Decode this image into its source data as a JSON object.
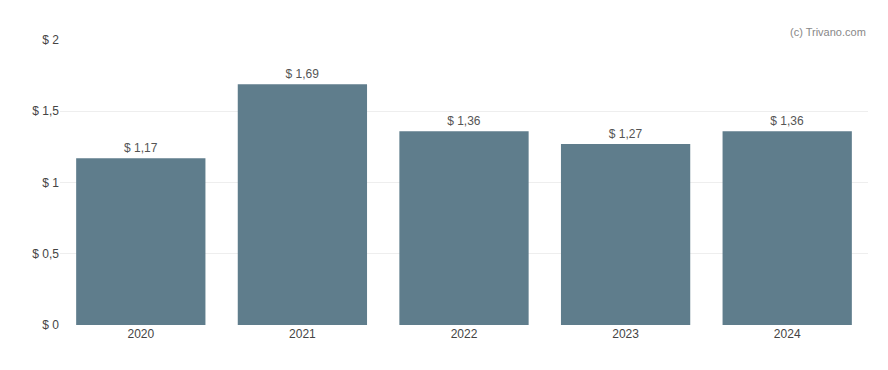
{
  "chart_data": {
    "type": "bar",
    "categories": [
      "2020",
      "2021",
      "2022",
      "2023",
      "2024"
    ],
    "values": [
      1.17,
      1.69,
      1.36,
      1.27,
      1.36
    ],
    "value_labels": [
      "$ 1,17",
      "$ 1,69",
      "$ 1,36",
      "$ 1,27",
      "$ 1,36"
    ],
    "data_labels": true,
    "color": "#5f7d8c",
    "ylim": [
      0,
      2.0
    ],
    "yticks": [
      {
        "value": 0,
        "label": "$ 0"
      },
      {
        "value": 0.5,
        "label": "$ 0,5"
      },
      {
        "value": 1.0,
        "label": "$ 1"
      },
      {
        "value": 1.5,
        "label": "$ 1,5"
      },
      {
        "value": 2.0,
        "label": "$ 2"
      }
    ],
    "grid": true,
    "annotations": [
      "(c) Trivano.com"
    ]
  }
}
